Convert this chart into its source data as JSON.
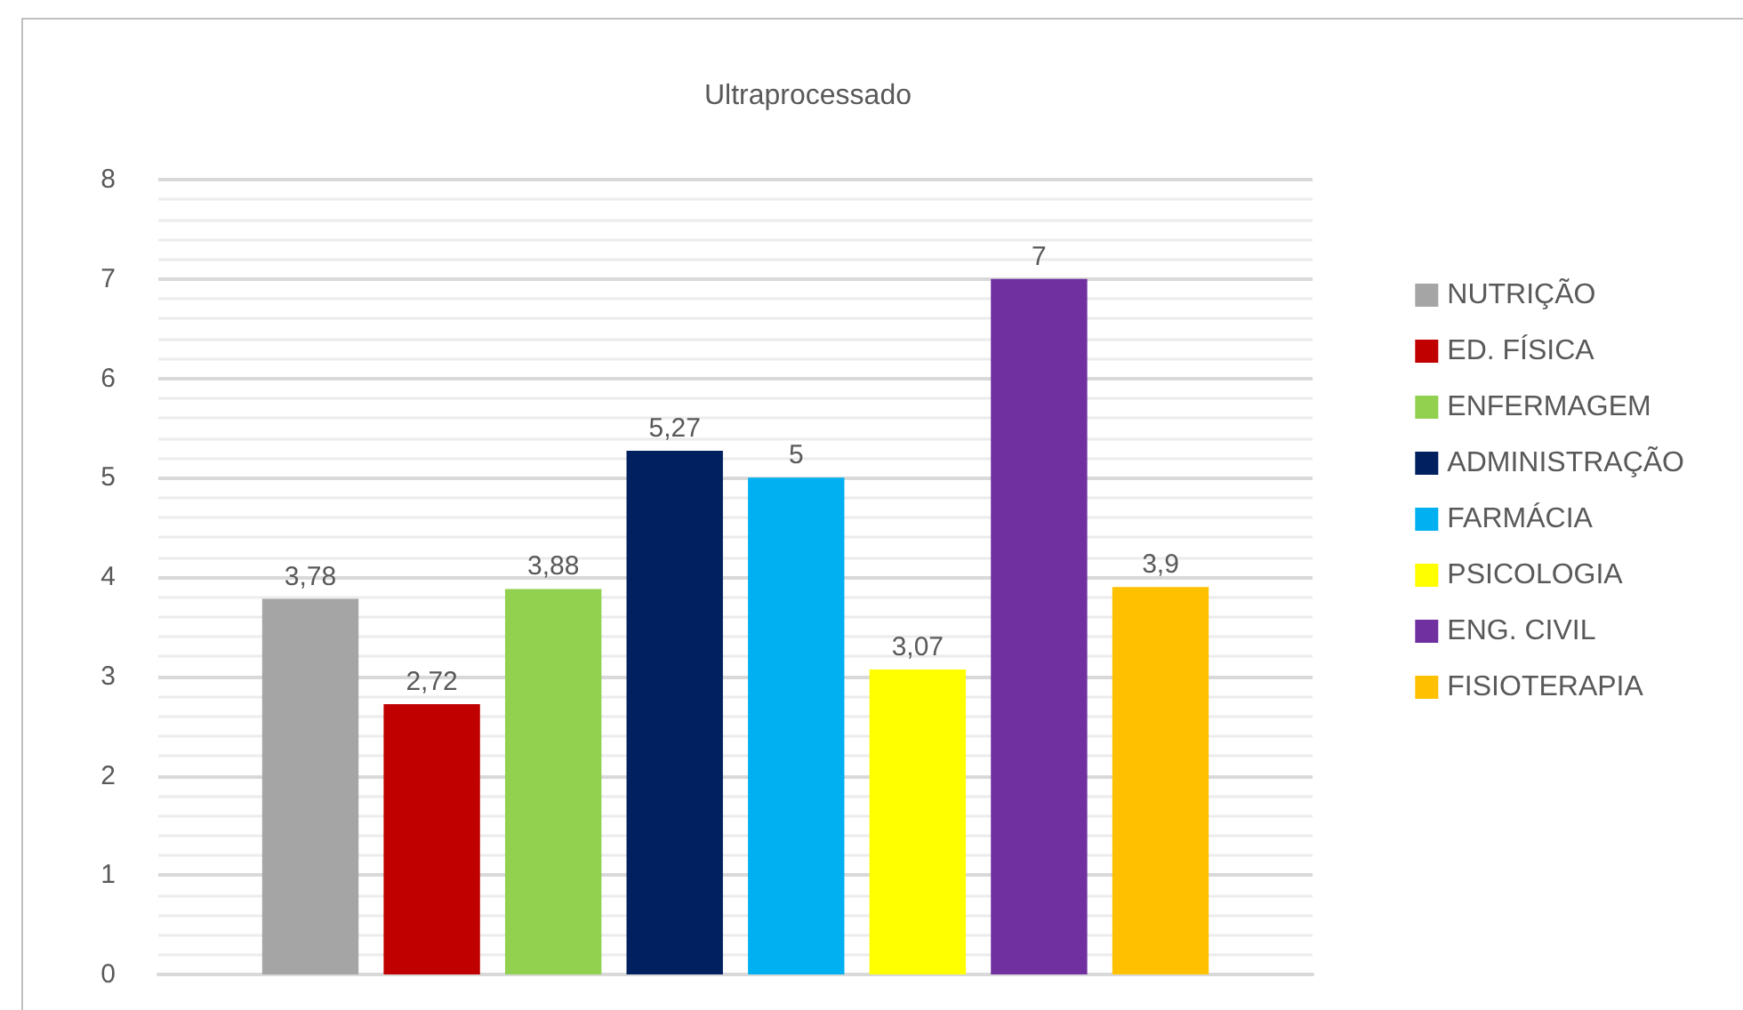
{
  "chart_data": {
    "type": "bar",
    "title": "Ultraprocessado",
    "categories": [
      null
    ],
    "series": [
      {
        "name": "NUTRIÇÃO",
        "color": "#a5a5a5",
        "values": [
          3.78
        ],
        "value_labels": [
          "3,78"
        ]
      },
      {
        "name": "ED. FÍSICA",
        "color": "#c00000",
        "values": [
          2.72
        ],
        "value_labels": [
          "2,72"
        ]
      },
      {
        "name": "ENFERMAGEM",
        "color": "#92d050",
        "values": [
          3.88
        ],
        "value_labels": [
          "3,88"
        ]
      },
      {
        "name": "ADMINISTRAÇÃO",
        "color": "#002060",
        "values": [
          5.27
        ],
        "value_labels": [
          "5,27"
        ]
      },
      {
        "name": "FARMÁCIA",
        "color": "#00b0f0",
        "values": [
          5
        ],
        "value_labels": [
          "5"
        ]
      },
      {
        "name": "PSICOLOGIA",
        "color": "#ffff00",
        "values": [
          3.07
        ],
        "value_labels": [
          "3,07"
        ]
      },
      {
        "name": "ENG. CIVIL",
        "color": "#7030a0",
        "values": [
          7
        ],
        "value_labels": [
          "7"
        ]
      },
      {
        "name": "FISIOTERAPIA",
        "color": "#ffc000",
        "values": [
          3.9
        ],
        "value_labels": [
          "3,9"
        ]
      }
    ],
    "ylim": [
      0,
      8
    ],
    "yticks": [
      0,
      1,
      2,
      3,
      4,
      5,
      6,
      7,
      8
    ],
    "grid": "y",
    "legend": "right"
  }
}
